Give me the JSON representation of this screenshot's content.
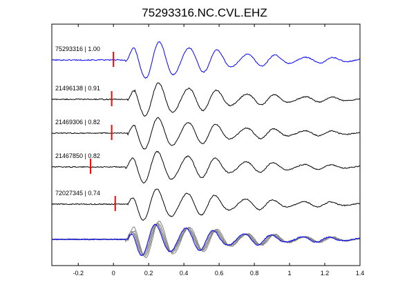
{
  "chart_data": {
    "type": "line",
    "title": "75293316.NC.CVL.EHZ",
    "xlabel": "",
    "ylabel": "",
    "xlim": [
      -0.35,
      1.4
    ],
    "xticks": [
      -0.2,
      0,
      0.2,
      0.4,
      0.6,
      0.8,
      1,
      1.2,
      1.4
    ],
    "xtick_labels": [
      "-0.2",
      "0",
      "0.2",
      "0.4",
      "0.6",
      "0.8",
      "1",
      "1.2",
      "1.4"
    ],
    "grid": false,
    "colors": {
      "template": "#0000ff",
      "match": "#000000",
      "overlay": "#808080",
      "pick": "#ff0000"
    },
    "traces": [
      {
        "label": "75293316 | 1.00",
        "pick": 0.0,
        "color": "#0000ff",
        "onset": 0.07,
        "main_trough": 0.18,
        "peak_amp": 1.0
      },
      {
        "label": "21496138 | 0.91",
        "pick": -0.01,
        "color": "#000000",
        "onset": 0.08,
        "main_trough": 0.18,
        "peak_amp": 0.9
      },
      {
        "label": "21469306 | 0.82",
        "pick": -0.01,
        "color": "#000000",
        "onset": 0.08,
        "main_trough": 0.18,
        "peak_amp": 0.85
      },
      {
        "label": "21467850 | 0.82",
        "pick": -0.13,
        "color": "#000000",
        "onset": 0.07,
        "main_trough": 0.18,
        "peak_amp": 0.85
      },
      {
        "label": "72027345 | 0.74",
        "pick": 0.01,
        "color": "#000000",
        "onset": 0.08,
        "main_trough": 0.18,
        "peak_amp": 0.85
      }
    ],
    "overlay_series": [
      {
        "color": "#808080"
      },
      {
        "color": "#808080"
      },
      {
        "color": "#808080"
      },
      {
        "color": "#808080"
      },
      {
        "color": "#0000ff"
      }
    ]
  }
}
